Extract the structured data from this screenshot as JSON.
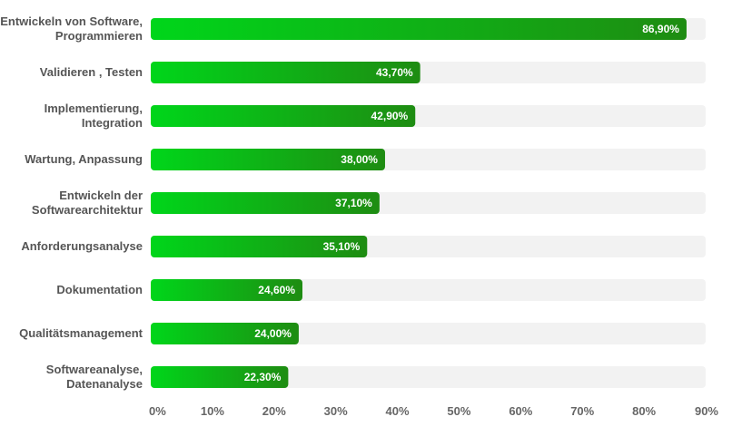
{
  "colors": {
    "track": "#f2f2f2",
    "bar_start": "#00d61a",
    "bar_end": "#1e8c12",
    "category_text": "#555555",
    "tick_text": "#666666",
    "value_text": "#ffffff"
  },
  "chart_data": {
    "type": "bar",
    "orientation": "horizontal",
    "title": "",
    "xlabel": "",
    "ylabel": "",
    "xlim": [
      0,
      90
    ],
    "grid": false,
    "legend": "none",
    "categories": [
      [
        "Entwickeln von Software,",
        "Programmieren"
      ],
      [
        "Validieren , Testen"
      ],
      [
        "Implementierung,",
        "Integration"
      ],
      [
        "Wartung, Anpassung"
      ],
      [
        "Entwickeln der",
        "Softwarearchitektur"
      ],
      [
        "Anforderungsanalyse"
      ],
      [
        "Dokumentation"
      ],
      [
        "Qualitätsmanagement"
      ],
      [
        "Softwareanalyse,",
        "Datenanalyse"
      ]
    ],
    "values": [
      86.9,
      43.7,
      42.9,
      38.0,
      37.1,
      35.1,
      24.6,
      24.0,
      22.3
    ],
    "value_labels": [
      "86,90%",
      "43,70%",
      "42,90%",
      "38,00%",
      "37,10%",
      "35,10%",
      "24,60%",
      "24,00%",
      "22,30%"
    ],
    "ticks": [
      0,
      10,
      20,
      30,
      40,
      50,
      60,
      70,
      80,
      90
    ],
    "tick_labels": [
      "0%",
      "10%",
      "20%",
      "30%",
      "40%",
      "50%",
      "60%",
      "70%",
      "80%",
      "90%"
    ]
  }
}
